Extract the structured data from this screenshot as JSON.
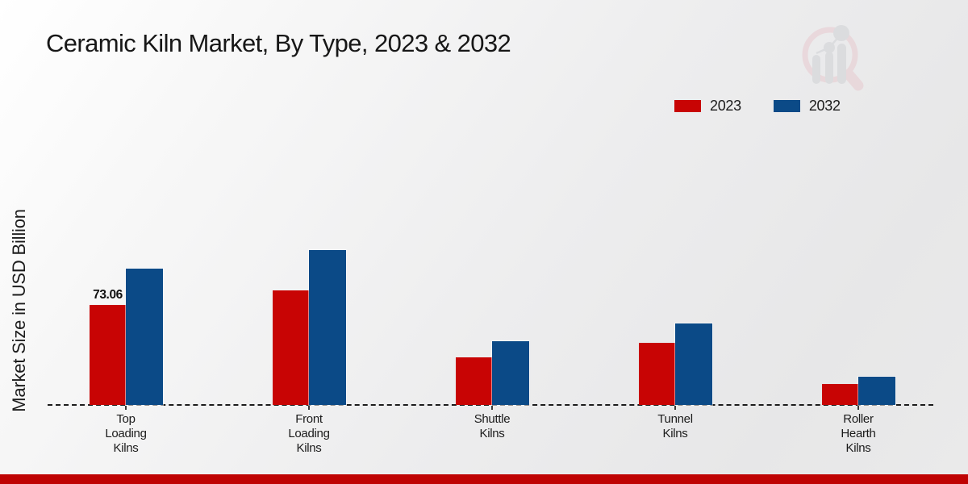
{
  "title": "Ceramic Kiln Market, By Type, 2023 & 2032",
  "ylabel": "Market Size in USD Billion",
  "annotation": {
    "text": "73.06",
    "category_index": 0,
    "series_index": 0
  },
  "icons": {
    "brand_logo": "magnifier-bar-chart-logo"
  },
  "colors": {
    "series_2023": "#c80404",
    "series_2032": "#0b4a87",
    "bottom_strip": "#bf0303",
    "text": "#171717",
    "logo_ring": "#e8cdd2",
    "logo_bars": "#d2d3d7"
  },
  "legend": {
    "position": "top-right",
    "items": [
      "2023",
      "2032"
    ]
  },
  "chart_data": {
    "type": "bar",
    "title": "Ceramic Kiln Market, By Type, 2023 & 2032",
    "xlabel": "",
    "ylabel": "Market Size in USD Billion",
    "categories": [
      "Top\nLoading\nKilns",
      "Front\nLoading\nKilns",
      "Shuttle\nKilns",
      "Tunnel\nKilns",
      "Roller\nHearth\nKilns"
    ],
    "series": [
      {
        "name": "2023",
        "color": "#c80404",
        "values": [
          73.06,
          83.7,
          34.8,
          45.4,
          15.3
        ]
      },
      {
        "name": "2032",
        "color": "#0b4a87",
        "values": [
          99.6,
          113.1,
          46.5,
          59.5,
          20.6
        ]
      }
    ],
    "data_labels": [
      "73.06 shown on 2023 Top Loading Kilns bar only"
    ],
    "ylim": [
      0,
      120
    ],
    "grid": false,
    "baseline_style": "dashed",
    "legend_position": "top-right"
  }
}
